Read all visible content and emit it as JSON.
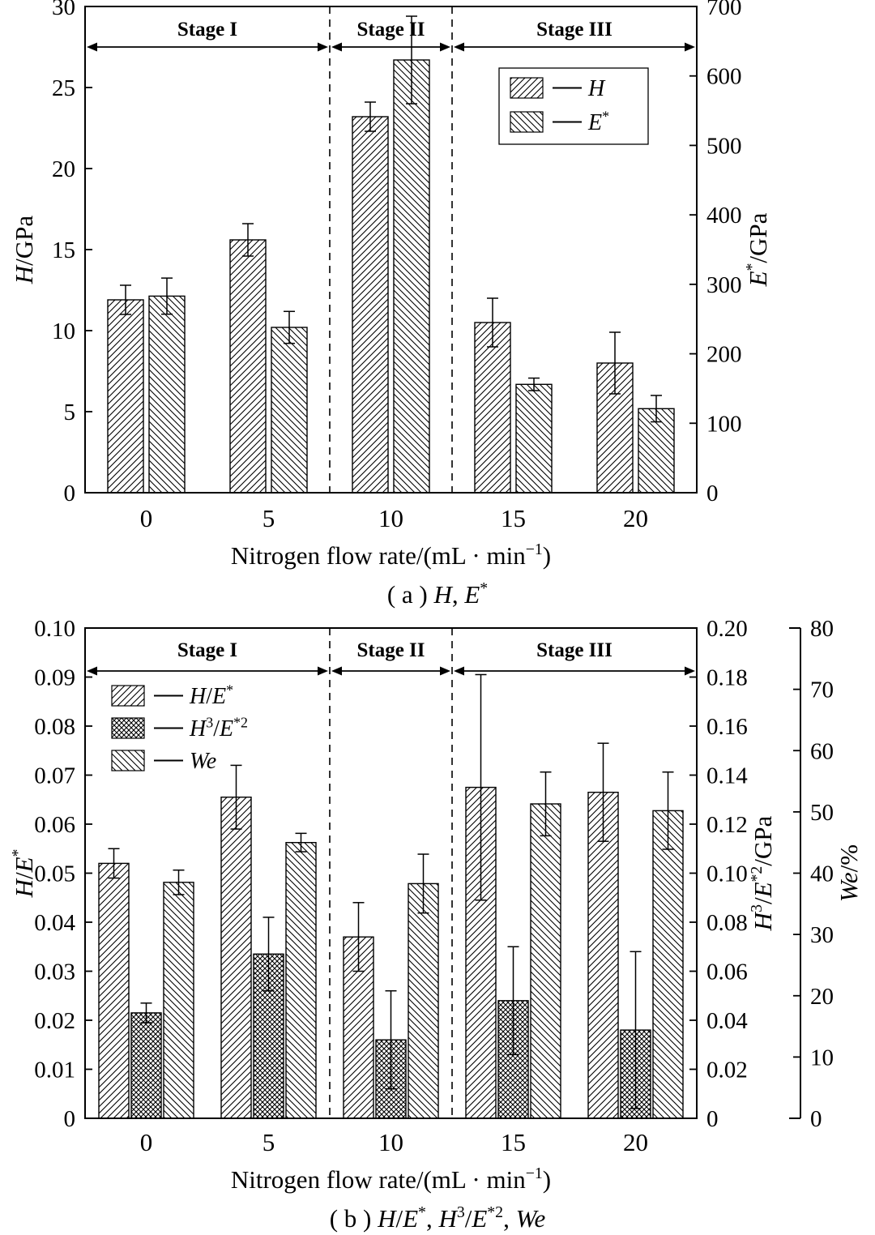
{
  "figure": {
    "background": "#ffffff",
    "ink": "#000000",
    "caption_a": "(a) H, E*",
    "caption_b": "(b) H/E*, H3/E*2, We"
  },
  "chart_data": [
    {
      "type": "bar",
      "panel": "a",
      "title": "",
      "xlabel": "Nitrogen flow rate/(mL · min−1)",
      "xlabel_segs": [
        {
          "t": "Nitrogen flow rate/(mL · min"
        },
        {
          "t": "−1",
          "sup": true
        },
        {
          "t": ")"
        }
      ],
      "caption_segs": [
        {
          "t": "( a ) "
        },
        {
          "t": "H",
          "i": true
        },
        {
          "t": ", "
        },
        {
          "t": "E",
          "i": true
        },
        {
          "t": "*",
          "sup": true
        }
      ],
      "categories": [
        "0",
        "5",
        "10",
        "15",
        "20"
      ],
      "axes": [
        {
          "side": "left",
          "label": "H/GPa",
          "label_segs": [
            {
              "t": "H",
              "i": true
            },
            {
              "t": "/GPa"
            }
          ],
          "min": 0,
          "max": 30,
          "tick_values": [
            0,
            5,
            10,
            15,
            20,
            25,
            30
          ],
          "tick_labels": [
            "0",
            "5",
            "10",
            "15",
            "20",
            "25",
            "30"
          ]
        },
        {
          "side": "right",
          "label": "E*/GPa",
          "label_segs": [
            {
              "t": "E",
              "i": true
            },
            {
              "t": "*",
              "sup": true
            },
            {
              "t": "/GPa"
            }
          ],
          "min": 0,
          "max": 700,
          "tick_values": [
            0,
            100,
            200,
            300,
            400,
            500,
            600,
            700
          ],
          "tick_labels": [
            "0",
            "100",
            "200",
            "300",
            "400",
            "500",
            "600",
            "700"
          ]
        }
      ],
      "series": [
        {
          "name": "H",
          "axis": 0,
          "hatch": "fwd",
          "values": [
            11.9,
            15.6,
            23.2,
            10.5,
            8.0
          ],
          "errors": [
            0.9,
            1.0,
            0.9,
            1.5,
            1.9
          ],
          "name_segs": [
            {
              "t": "H",
              "i": true
            }
          ]
        },
        {
          "name": "E*",
          "axis": 1,
          "hatch": "back",
          "values": [
            283,
            238,
            623,
            156,
            121
          ],
          "errors": [
            26,
            23,
            63,
            9,
            19
          ],
          "name_segs": [
            {
              "t": "E",
              "i": true
            },
            {
              "t": "*",
              "sup": true
            }
          ]
        }
      ],
      "stages": [
        {
          "label": "Stage I",
          "from": 0,
          "to": 2
        },
        {
          "label": "Stage II",
          "from": 2,
          "to": 3
        },
        {
          "label": "Stage III",
          "from": 3,
          "to": 5
        }
      ],
      "dashed_boundaries": [
        2,
        3
      ],
      "legend_position": "top-right",
      "grid": false
    },
    {
      "type": "bar",
      "panel": "b",
      "title": "",
      "xlabel": "Nitrogen flow rate/(mL · min−1)",
      "xlabel_segs": [
        {
          "t": "Nitrogen flow rate/(mL · min"
        },
        {
          "t": "−1",
          "sup": true
        },
        {
          "t": ")"
        }
      ],
      "caption_segs": [
        {
          "t": "( b ) "
        },
        {
          "t": "H",
          "i": true
        },
        {
          "t": "/"
        },
        {
          "t": "E",
          "i": true
        },
        {
          "t": "*",
          "sup": true
        },
        {
          "t": ", "
        },
        {
          "t": "H",
          "i": true
        },
        {
          "t": "3",
          "sup": true
        },
        {
          "t": "/"
        },
        {
          "t": "E",
          "i": true
        },
        {
          "t": "*2",
          "sup": true
        },
        {
          "t": ", "
        },
        {
          "t": "We",
          "i": true
        }
      ],
      "categories": [
        "0",
        "5",
        "10",
        "15",
        "20"
      ],
      "axes": [
        {
          "side": "left",
          "label": "H/E*",
          "label_segs": [
            {
              "t": "H",
              "i": true
            },
            {
              "t": "/"
            },
            {
              "t": "E",
              "i": true
            },
            {
              "t": "*",
              "sup": true
            }
          ],
          "min": 0,
          "max": 0.1,
          "tick_values": [
            0,
            0.01,
            0.02,
            0.03,
            0.04,
            0.05,
            0.06,
            0.07,
            0.08,
            0.09,
            0.1
          ],
          "tick_labels": [
            "0",
            "0.01",
            "0.02",
            "0.03",
            "0.04",
            "0.05",
            "0.06",
            "0.07",
            "0.08",
            "0.09",
            "0.10"
          ]
        },
        {
          "side": "right",
          "label": "H3/E*2/GPa",
          "label_segs": [
            {
              "t": "H",
              "i": true
            },
            {
              "t": "3",
              "sup": true
            },
            {
              "t": "/"
            },
            {
              "t": "E",
              "i": true
            },
            {
              "t": "*2",
              "sup": true
            },
            {
              "t": "/GPa"
            }
          ],
          "min": 0,
          "max": 0.2,
          "tick_values": [
            0,
            0.02,
            0.04,
            0.06,
            0.08,
            0.1,
            0.12,
            0.14,
            0.16,
            0.18,
            0.2
          ],
          "tick_labels": [
            "0",
            "0.02",
            "0.04",
            "0.06",
            "0.08",
            "0.10",
            "0.12",
            "0.14",
            "0.16",
            "0.18",
            "0.20"
          ]
        },
        {
          "side": "right-detached",
          "label": "We/%",
          "label_segs": [
            {
              "t": "We",
              "i": true
            },
            {
              "t": "/%"
            }
          ],
          "min": 0,
          "max": 80,
          "tick_values": [
            0,
            10,
            20,
            30,
            40,
            50,
            60,
            70,
            80
          ],
          "tick_labels": [
            "0",
            "10",
            "20",
            "30",
            "40",
            "50",
            "60",
            "70",
            "80"
          ],
          "detached": true
        }
      ],
      "series": [
        {
          "name": "H/E*",
          "axis": 0,
          "hatch": "fwd",
          "values": [
            0.052,
            0.0655,
            0.037,
            0.0675,
            0.0665
          ],
          "errors": [
            0.003,
            0.0065,
            0.007,
            0.023,
            0.01
          ],
          "name_segs": [
            {
              "t": "H",
              "i": true
            },
            {
              "t": "/"
            },
            {
              "t": "E",
              "i": true
            },
            {
              "t": "*",
              "sup": true
            }
          ]
        },
        {
          "name": "H3/E*2",
          "axis": 1,
          "hatch": "cross",
          "values": [
            0.043,
            0.067,
            0.032,
            0.048,
            0.036
          ],
          "errors": [
            0.004,
            0.015,
            0.02,
            0.022,
            0.032
          ],
          "name_segs": [
            {
              "t": "H",
              "i": true
            },
            {
              "t": "3",
              "sup": true
            },
            {
              "t": "/"
            },
            {
              "t": "E",
              "i": true
            },
            {
              "t": "*2",
              "sup": true
            }
          ]
        },
        {
          "name": "We",
          "axis": 2,
          "hatch": "back",
          "values": [
            38.5,
            45.0,
            38.3,
            51.3,
            50.2
          ],
          "errors": [
            2.0,
            1.5,
            4.8,
            5.2,
            6.3
          ],
          "name_segs": [
            {
              "t": "We",
              "i": true
            }
          ]
        }
      ],
      "stages": [
        {
          "label": "Stage I",
          "from": 0,
          "to": 2
        },
        {
          "label": "Stage II",
          "from": 2,
          "to": 3
        },
        {
          "label": "Stage III",
          "from": 3,
          "to": 5
        }
      ],
      "dashed_boundaries": [
        2,
        3
      ],
      "legend_position": "top-left",
      "grid": false
    }
  ]
}
